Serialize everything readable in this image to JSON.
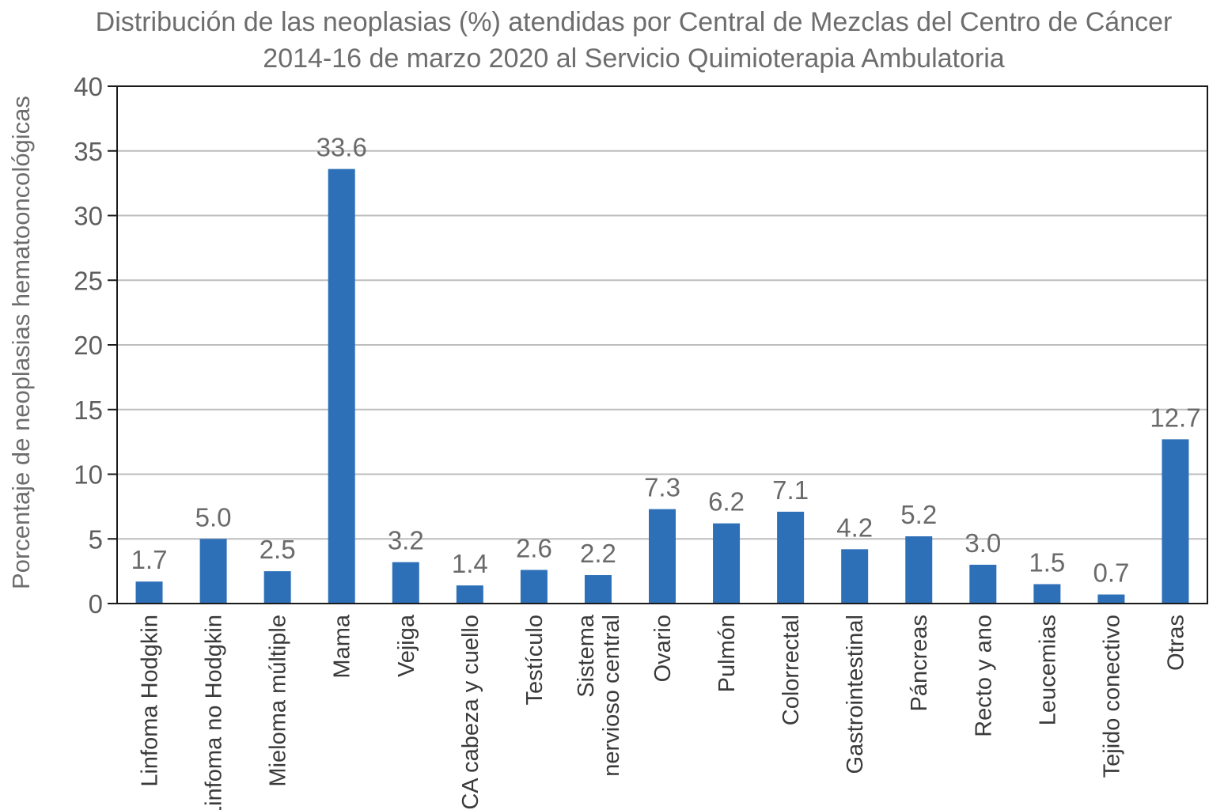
{
  "chart_data": {
    "type": "bar",
    "title": [
      "Distribución de las neoplasias (%) atendidas por Central de Mezclas del Centro de Cáncer",
      "2014-16 de marzo 2020 al Servicio Quimioterapia Ambulatoria"
    ],
    "xlabel": "",
    "ylabel": "Porcentaje de neoplasias hematooncológicas",
    "ylim": [
      0,
      40
    ],
    "yticks": [
      0,
      5,
      10,
      15,
      20,
      25,
      30,
      35,
      40
    ],
    "grid": true,
    "bar_color": "#2e70b8",
    "categories": [
      [
        "Linfoma Hodgkin"
      ],
      [
        "Linfoma no Hodgkin"
      ],
      [
        "Mieloma múltiple"
      ],
      [
        "Mama"
      ],
      [
        "Vejiga"
      ],
      [
        "CA cabeza y cuello"
      ],
      [
        "Testículo"
      ],
      [
        "Sistema",
        "nervioso central"
      ],
      [
        "Ovario"
      ],
      [
        "Pulmón"
      ],
      [
        "Colorrectal"
      ],
      [
        "Gastrointestinal"
      ],
      [
        "Páncreas"
      ],
      [
        "Recto y ano"
      ],
      [
        "Leucemias"
      ],
      [
        "Tejido conectivo"
      ],
      [
        "Otras"
      ]
    ],
    "values": [
      1.7,
      5.0,
      2.5,
      33.6,
      3.2,
      1.4,
      2.6,
      2.2,
      7.3,
      6.2,
      7.1,
      4.2,
      5.2,
      3.0,
      1.5,
      0.7,
      12.7
    ],
    "value_labels": [
      "1.7",
      "5.0",
      "2.5",
      "33.6",
      "3.2",
      "1.4",
      "2.6",
      "2.2",
      "7.3",
      "6.2",
      "7.1",
      "4.2",
      "5.2",
      "3.0",
      "1.5",
      "0.7",
      "12.7"
    ]
  }
}
